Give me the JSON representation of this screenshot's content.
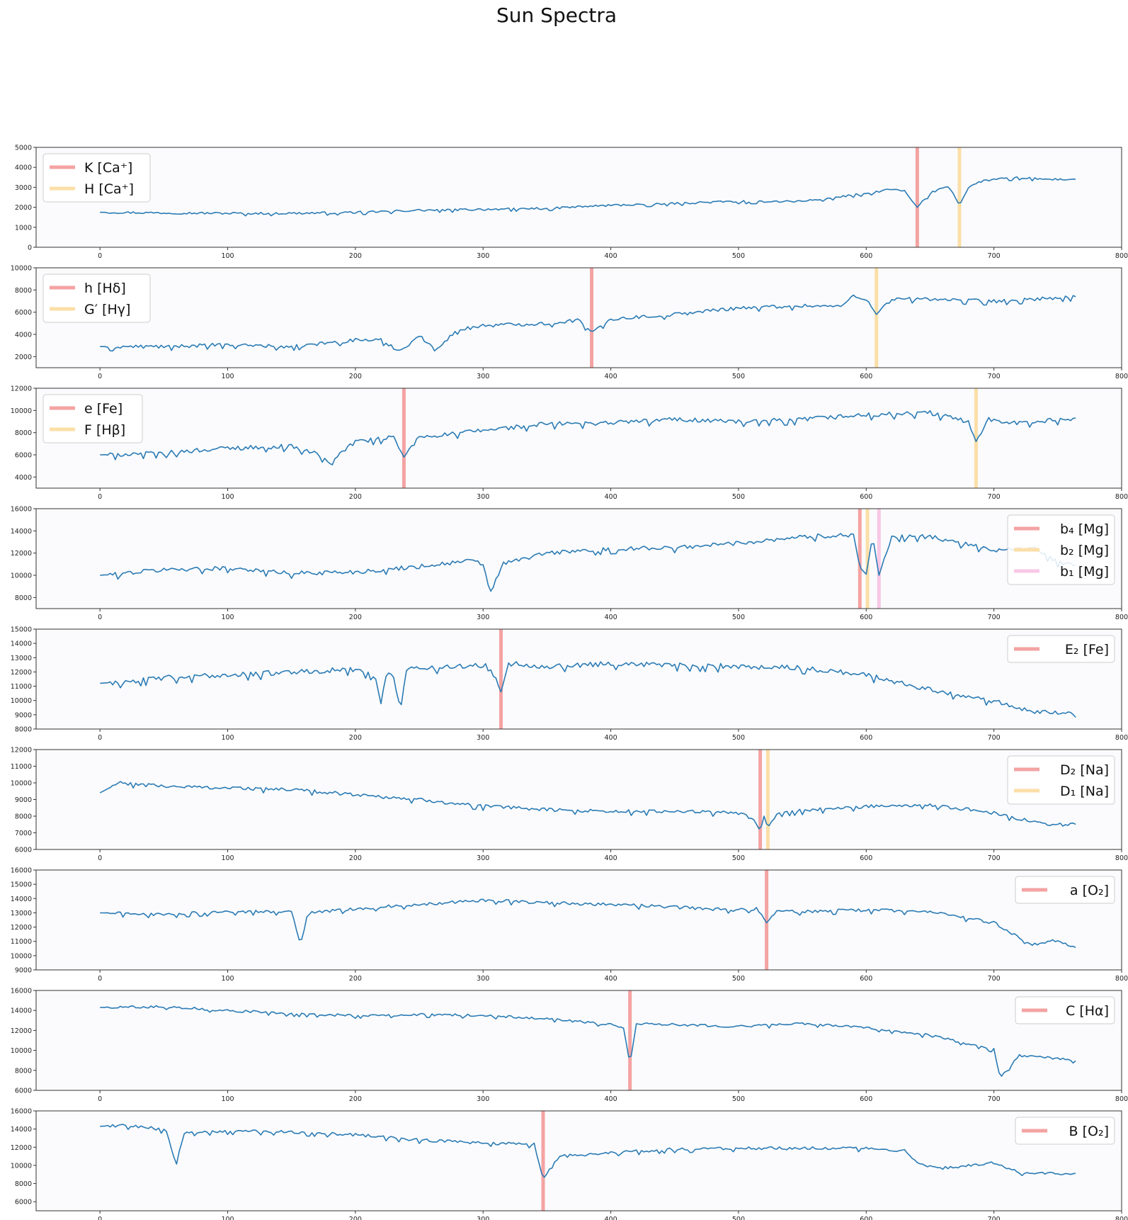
{
  "title": "Sun Spectra",
  "colors": {
    "spectrum": "#2b7bb4",
    "line_red": "#f4a3a3",
    "line_orange": "#fbdfa7",
    "line_pink": "#f8c8e6",
    "panel_bg": "#fbfbfd"
  },
  "chart_data": [
    {
      "type": "line",
      "xlim": [
        -50,
        800
      ],
      "ylim": [
        0,
        5000
      ],
      "xticks": [
        0,
        100,
        200,
        300,
        400,
        500,
        600,
        700,
        800
      ],
      "yticks": [
        0,
        1000,
        2000,
        3000,
        4000,
        5000
      ],
      "legend_position": "upper-left",
      "lines": [
        {
          "label": "K [Ca⁺]",
          "x": 640,
          "color": "red"
        },
        {
          "label": "H [Ca⁺]",
          "x": 673,
          "color": "orange"
        }
      ],
      "series": [
        {
          "x": [
            0,
            50,
            100,
            150,
            200,
            250,
            300,
            350,
            400,
            450,
            500,
            550,
            600,
            620,
            630,
            640,
            650,
            660,
            665,
            673,
            680,
            690,
            700,
            720,
            740,
            765
          ],
          "y": [
            1750,
            1720,
            1700,
            1700,
            1750,
            1850,
            1900,
            1950,
            2100,
            2200,
            2300,
            2300,
            2700,
            2900,
            2800,
            2000,
            2700,
            3000,
            3050,
            2100,
            3000,
            3300,
            3400,
            3500,
            3400,
            3400
          ],
          "noise": 110
        }
      ]
    },
    {
      "type": "line",
      "xlim": [
        -50,
        800
      ],
      "ylim": [
        1000,
        10000
      ],
      "xticks": [
        0,
        100,
        200,
        300,
        400,
        500,
        600,
        700,
        800
      ],
      "yticks": [
        2000,
        4000,
        6000,
        8000,
        10000
      ],
      "legend_position": "upper-left",
      "lines": [
        {
          "label": "h [Hδ]",
          "x": 385,
          "color": "red"
        },
        {
          "label": "G′ [Hγ]",
          "x": 608,
          "color": "orange"
        }
      ],
      "series": [
        {
          "x": [
            0,
            50,
            100,
            150,
            200,
            220,
            235,
            250,
            262,
            280,
            300,
            350,
            375,
            385,
            400,
            450,
            500,
            550,
            580,
            590,
            600,
            608,
            620,
            650,
            700,
            765
          ],
          "y": [
            2900,
            2900,
            3100,
            2900,
            3500,
            3500,
            2500,
            3900,
            2600,
            4400,
            4800,
            5000,
            5300,
            4200,
            5400,
            5800,
            6400,
            6600,
            6500,
            7500,
            7200,
            5800,
            7200,
            7200,
            7000,
            7400
          ],
          "noise": 330
        }
      ]
    },
    {
      "type": "line",
      "xlim": [
        -50,
        800
      ],
      "ylim": [
        3000,
        12000
      ],
      "xticks": [
        0,
        100,
        200,
        300,
        400,
        500,
        600,
        700,
        800
      ],
      "yticks": [
        4000,
        6000,
        8000,
        10000,
        12000
      ],
      "legend_position": "upper-left",
      "lines": [
        {
          "label": "e [Fe]",
          "x": 238,
          "color": "red"
        },
        {
          "label": "F [Hβ]",
          "x": 686,
          "color": "orange"
        }
      ],
      "series": [
        {
          "x": [
            0,
            50,
            100,
            150,
            170,
            180,
            200,
            230,
            238,
            250,
            300,
            350,
            400,
            450,
            500,
            550,
            600,
            650,
            680,
            686,
            695,
            720,
            765
          ],
          "y": [
            6000,
            6200,
            6600,
            6800,
            6100,
            5400,
            7200,
            7600,
            5800,
            7600,
            8200,
            8800,
            8900,
            9200,
            9000,
            9200,
            9600,
            9800,
            9000,
            7200,
            9200,
            8900,
            9300
          ],
          "noise": 420
        }
      ]
    },
    {
      "type": "line",
      "xlim": [
        -50,
        800
      ],
      "ylim": [
        7000,
        16000
      ],
      "xticks": [
        0,
        100,
        200,
        300,
        400,
        500,
        600,
        700,
        800
      ],
      "yticks": [
        8000,
        10000,
        12000,
        14000,
        16000
      ],
      "legend_position": "upper-right",
      "lines": [
        {
          "label": "b₄ [Mg]",
          "x": 595,
          "color": "red"
        },
        {
          "label": "b₂ [Mg]",
          "x": 601,
          "color": "orange"
        },
        {
          "label": "b₁ [Mg]",
          "x": 610,
          "color": "pink"
        }
      ],
      "series": [
        {
          "x": [
            0,
            50,
            100,
            150,
            200,
            250,
            290,
            300,
            306,
            315,
            350,
            400,
            450,
            500,
            550,
            580,
            590,
            595,
            600,
            605,
            610,
            620,
            650,
            700,
            730,
            750,
            765
          ],
          "y": [
            10000,
            10500,
            10700,
            10200,
            10300,
            10800,
            11300,
            11000,
            8400,
            11000,
            12000,
            12400,
            12500,
            12900,
            13500,
            13600,
            13700,
            10700,
            10100,
            13500,
            10000,
            13500,
            13500,
            12300,
            12500,
            11200,
            11000
          ],
          "noise": 420
        }
      ]
    },
    {
      "type": "line",
      "xlim": [
        -50,
        800
      ],
      "ylim": [
        8000,
        15000
      ],
      "xticks": [
        0,
        100,
        200,
        300,
        400,
        500,
        600,
        700,
        800
      ],
      "yticks": [
        8000,
        9000,
        10000,
        11000,
        12000,
        13000,
        14000,
        15000
      ],
      "legend_position": "upper-right",
      "lines": [
        {
          "label": "E₂ [Fe]",
          "x": 314,
          "color": "red"
        }
      ],
      "series": [
        {
          "x": [
            0,
            50,
            100,
            150,
            200,
            215,
            220,
            225,
            230,
            235,
            240,
            280,
            305,
            314,
            320,
            350,
            400,
            450,
            500,
            550,
            600,
            650,
            700,
            730,
            765
          ],
          "y": [
            11200,
            11600,
            11800,
            12000,
            12200,
            11800,
            9900,
            12000,
            11800,
            9300,
            12200,
            12400,
            12500,
            10600,
            12600,
            12400,
            12600,
            12500,
            12400,
            12300,
            11800,
            10800,
            10000,
            9300,
            9000
          ],
          "noise": 380
        }
      ]
    },
    {
      "type": "line",
      "xlim": [
        -50,
        800
      ],
      "ylim": [
        6000,
        12000
      ],
      "xticks": [
        0,
        100,
        200,
        300,
        400,
        500,
        600,
        700,
        800
      ],
      "yticks": [
        6000,
        7000,
        8000,
        9000,
        10000,
        11000,
        12000
      ],
      "legend_position": "upper-right",
      "lines": [
        {
          "label": "D₂ [Na]",
          "x": 517,
          "color": "red"
        },
        {
          "label": "D₁ [Na]",
          "x": 523,
          "color": "orange"
        }
      ],
      "series": [
        {
          "x": [
            0,
            15,
            50,
            100,
            150,
            200,
            250,
            300,
            350,
            400,
            450,
            500,
            512,
            517,
            520,
            523,
            530,
            560,
            600,
            650,
            700,
            740,
            765
          ],
          "y": [
            9400,
            10000,
            9800,
            9700,
            9600,
            9300,
            9000,
            8600,
            8400,
            8300,
            8300,
            8200,
            7800,
            7100,
            8000,
            7300,
            8200,
            8400,
            8600,
            8700,
            8200,
            7500,
            7500
          ],
          "noise": 220
        }
      ]
    },
    {
      "type": "line",
      "xlim": [
        -50,
        800
      ],
      "ylim": [
        9000,
        16000
      ],
      "xticks": [
        0,
        100,
        200,
        300,
        400,
        500,
        600,
        700,
        800
      ],
      "yticks": [
        9000,
        10000,
        11000,
        12000,
        13000,
        14000,
        15000,
        16000
      ],
      "legend_position": "upper-right",
      "lines": [
        {
          "label": "a [O₂]",
          "x": 522,
          "color": "red"
        }
      ],
      "series": [
        {
          "x": [
            0,
            50,
            100,
            150,
            157,
            163,
            200,
            250,
            300,
            350,
            400,
            450,
            500,
            515,
            522,
            530,
            550,
            600,
            650,
            700,
            730,
            750,
            765
          ],
          "y": [
            13000,
            12900,
            13100,
            13100,
            10700,
            13000,
            13300,
            13600,
            13900,
            13700,
            13600,
            13400,
            13200,
            13300,
            12300,
            13100,
            13100,
            13200,
            13100,
            12300,
            10800,
            11100,
            10500
          ],
          "noise": 230
        }
      ]
    },
    {
      "type": "line",
      "xlim": [
        -50,
        800
      ],
      "ylim": [
        6000,
        16000
      ],
      "xticks": [
        0,
        100,
        200,
        300,
        400,
        500,
        600,
        700,
        800
      ],
      "yticks": [
        6000,
        8000,
        10000,
        12000,
        14000,
        16000
      ],
      "legend_position": "upper-right",
      "lines": [
        {
          "label": "C [Hα]",
          "x": 415,
          "color": "red"
        }
      ],
      "series": [
        {
          "x": [
            0,
            50,
            100,
            150,
            200,
            250,
            300,
            350,
            400,
            410,
            415,
            420,
            450,
            500,
            550,
            600,
            650,
            690,
            700,
            705,
            720,
            740,
            765
          ],
          "y": [
            14300,
            14400,
            14000,
            13700,
            13500,
            13600,
            13500,
            13200,
            12600,
            12300,
            8600,
            12700,
            12600,
            12400,
            12700,
            12300,
            11500,
            10400,
            10100,
            7300,
            9500,
            9300,
            9000
          ],
          "noise": 260
        }
      ]
    },
    {
      "type": "line",
      "xlim": [
        -50,
        800
      ],
      "ylim": [
        5000,
        16000
      ],
      "xticks": [
        0,
        100,
        200,
        300,
        400,
        500,
        600,
        700,
        800
      ],
      "yticks": [
        6000,
        8000,
        10000,
        12000,
        14000,
        16000
      ],
      "legend_position": "upper-right",
      "lines": [
        {
          "label": "B [O₂]",
          "x": 347,
          "color": "red"
        }
      ],
      "series": [
        {
          "x": [
            0,
            15,
            40,
            52,
            60,
            65,
            100,
            150,
            200,
            250,
            300,
            340,
            347,
            360,
            400,
            450,
            500,
            550,
            600,
            630,
            640,
            660,
            700,
            720,
            765
          ],
          "y": [
            14300,
            14400,
            14200,
            13800,
            10000,
            13600,
            13800,
            13700,
            13400,
            12800,
            12500,
            12300,
            8500,
            11000,
            11400,
            11800,
            11900,
            11900,
            11900,
            11600,
            10200,
            9700,
            10300,
            9300,
            9000
          ],
          "noise": 350
        }
      ]
    }
  ]
}
